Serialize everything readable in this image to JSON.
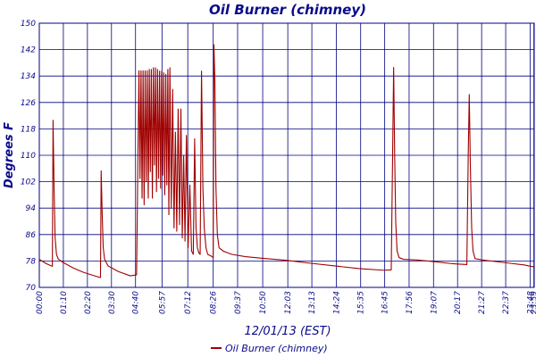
{
  "chart_data": {
    "type": "line",
    "title": "Oil Burner (chimney)",
    "xlabel": "12/01/13 (EST)",
    "ylabel": "Degrees F",
    "ylim": [
      70,
      150
    ],
    "yticks": [
      70,
      78,
      86,
      94,
      102,
      110,
      118,
      126,
      134,
      142,
      150
    ],
    "xlim": [
      0,
      1440
    ],
    "x_unit": "minutes since 00:00",
    "xticks": [
      {
        "label": "00:00",
        "x": 0
      },
      {
        "label": "01:10",
        "x": 70
      },
      {
        "label": "02:20",
        "x": 140
      },
      {
        "label": "03:30",
        "x": 210
      },
      {
        "label": "04:40",
        "x": 280
      },
      {
        "label": "05:57",
        "x": 357
      },
      {
        "label": "07:12",
        "x": 432
      },
      {
        "label": "08:26",
        "x": 506
      },
      {
        "label": "09:37",
        "x": 577
      },
      {
        "label": "10:50",
        "x": 650
      },
      {
        "label": "12:03",
        "x": 723
      },
      {
        "label": "13:13",
        "x": 793
      },
      {
        "label": "14:24",
        "x": 864
      },
      {
        "label": "15:35",
        "x": 935
      },
      {
        "label": "16:45",
        "x": 1005
      },
      {
        "label": "17:56",
        "x": 1076
      },
      {
        "label": "19:07",
        "x": 1147
      },
      {
        "label": "20:17",
        "x": 1217
      },
      {
        "label": "21:27",
        "x": 1287
      },
      {
        "label": "22:37",
        "x": 1357
      },
      {
        "label": "23:48",
        "x": 1428
      },
      {
        "label": "23:59",
        "x": 1439
      }
    ],
    "grid": true,
    "legend": "bottom-center",
    "series": [
      {
        "name": "Oil Burner (chimney)",
        "color": "#a00000",
        "points": [
          [
            0,
            78.5
          ],
          [
            20,
            77.2
          ],
          [
            38,
            76.4
          ],
          [
            40,
            120.6
          ],
          [
            43,
            100
          ],
          [
            46,
            85
          ],
          [
            50,
            80
          ],
          [
            55,
            78.6
          ],
          [
            70,
            77.5
          ],
          [
            100,
            75.8
          ],
          [
            130,
            74.5
          ],
          [
            170,
            73.2
          ],
          [
            178,
            73.0
          ],
          [
            180,
            105.3
          ],
          [
            183,
            92
          ],
          [
            186,
            82
          ],
          [
            190,
            78.5
          ],
          [
            200,
            76.5
          ],
          [
            230,
            74.8
          ],
          [
            265,
            73.5
          ],
          [
            283,
            73.8
          ],
          [
            287,
            110
          ],
          [
            290,
            135.6
          ],
          [
            293,
            103
          ],
          [
            296,
            135.6
          ],
          [
            299,
            97
          ],
          [
            302,
            135.6
          ],
          [
            305,
            95
          ],
          [
            308,
            135.6
          ],
          [
            311,
            102
          ],
          [
            314,
            135.6
          ],
          [
            317,
            97
          ],
          [
            320,
            136
          ],
          [
            323,
            105
          ],
          [
            326,
            136
          ],
          [
            329,
            97
          ],
          [
            332,
            136.5
          ],
          [
            335,
            107
          ],
          [
            338,
            136.5
          ],
          [
            341,
            99
          ],
          [
            344,
            136
          ],
          [
            347,
            103
          ],
          [
            350,
            135.5
          ],
          [
            353,
            100
          ],
          [
            356,
            135.5
          ],
          [
            359,
            104
          ],
          [
            362,
            135
          ],
          [
            365,
            98
          ],
          [
            368,
            134.5
          ],
          [
            371,
            101
          ],
          [
            374,
            136
          ],
          [
            377,
            92
          ],
          [
            380,
            136.5
          ],
          [
            384,
            94
          ],
          [
            388,
            130
          ],
          [
            392,
            88
          ],
          [
            396,
            117
          ],
          [
            400,
            87
          ],
          [
            404,
            124
          ],
          [
            408,
            89
          ],
          [
            412,
            124
          ],
          [
            416,
            85
          ],
          [
            420,
            110
          ],
          [
            424,
            84
          ],
          [
            428,
            116
          ],
          [
            433,
            82
          ],
          [
            438,
            101
          ],
          [
            443,
            81
          ],
          [
            448,
            80
          ],
          [
            452,
            115
          ],
          [
            456,
            88
          ],
          [
            460,
            82
          ],
          [
            464,
            80.5
          ],
          [
            468,
            80
          ],
          [
            472,
            135.5
          ],
          [
            476,
            100
          ],
          [
            480,
            88
          ],
          [
            485,
            82
          ],
          [
            490,
            80
          ],
          [
            500,
            79.5
          ],
          [
            506,
            79
          ],
          [
            508,
            143.5
          ],
          [
            511,
            132
          ],
          [
            514,
            100
          ],
          [
            518,
            86
          ],
          [
            523,
            82
          ],
          [
            535,
            81
          ],
          [
            560,
            80
          ],
          [
            600,
            79.3
          ],
          [
            650,
            78.8
          ],
          [
            720,
            78.2
          ],
          [
            790,
            77.3
          ],
          [
            860,
            76.5
          ],
          [
            930,
            75.7
          ],
          [
            1000,
            75.2
          ],
          [
            1024,
            75.3
          ],
          [
            1028,
            110
          ],
          [
            1031,
            136.6
          ],
          [
            1034,
            110
          ],
          [
            1037,
            90
          ],
          [
            1041,
            81
          ],
          [
            1047,
            79
          ],
          [
            1060,
            78.5
          ],
          [
            1100,
            78.3
          ],
          [
            1150,
            77.8
          ],
          [
            1200,
            77.2
          ],
          [
            1244,
            76.9
          ],
          [
            1248,
            110
          ],
          [
            1251,
            128.4
          ],
          [
            1254,
            108
          ],
          [
            1258,
            88
          ],
          [
            1262,
            81
          ],
          [
            1268,
            78.7
          ],
          [
            1290,
            78.3
          ],
          [
            1330,
            77.8
          ],
          [
            1370,
            77.3
          ],
          [
            1410,
            76.8
          ],
          [
            1439,
            76.2
          ]
        ]
      }
    ]
  }
}
